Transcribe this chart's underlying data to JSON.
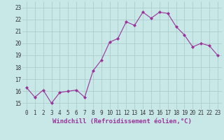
{
  "x": [
    0,
    1,
    2,
    3,
    4,
    5,
    6,
    7,
    8,
    9,
    10,
    11,
    12,
    13,
    14,
    15,
    16,
    17,
    18,
    19,
    20,
    21,
    22,
    23
  ],
  "y": [
    16.3,
    15.5,
    16.1,
    15.0,
    15.9,
    16.0,
    16.1,
    15.5,
    17.7,
    18.6,
    20.1,
    20.4,
    21.8,
    21.5,
    22.6,
    22.1,
    22.6,
    22.5,
    21.4,
    20.7,
    19.7,
    20.0,
    19.8,
    19.0
  ],
  "line_color": "#993399",
  "marker": "D",
  "marker_size": 2.0,
  "bg_color": "#C8E8E8",
  "grid_color": "#A8C8C8",
  "xlabel": "Windchill (Refroidissement éolien,°C)",
  "xlim": [
    -0.5,
    23.5
  ],
  "ylim": [
    14.5,
    23.5
  ],
  "yticks": [
    15,
    16,
    17,
    18,
    19,
    20,
    21,
    22,
    23
  ],
  "xticks": [
    0,
    1,
    2,
    3,
    4,
    5,
    6,
    7,
    8,
    9,
    10,
    11,
    12,
    13,
    14,
    15,
    16,
    17,
    18,
    19,
    20,
    21,
    22,
    23
  ],
  "tick_fontsize": 5.5,
  "xlabel_fontsize": 6.5,
  "linewidth": 0.8
}
